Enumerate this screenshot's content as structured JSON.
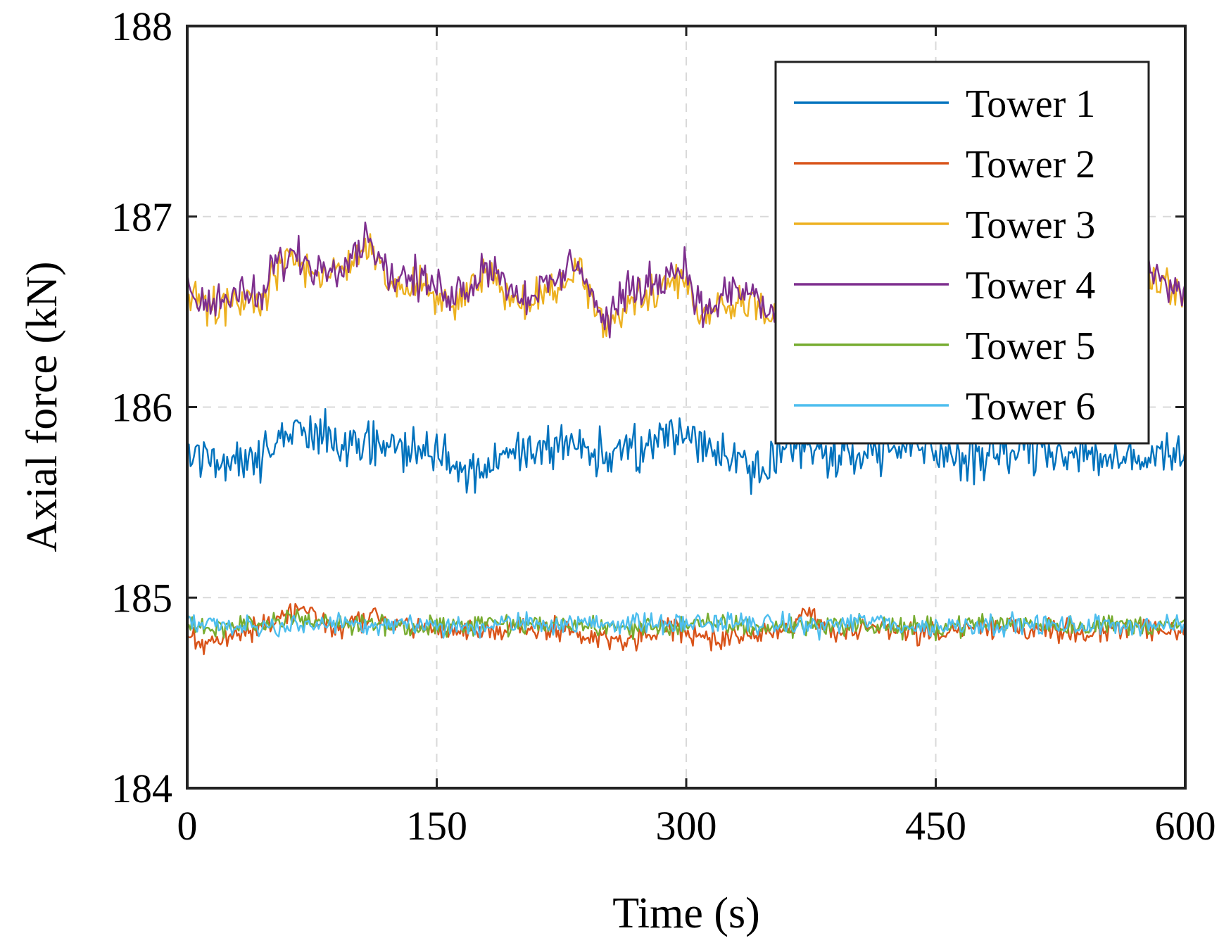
{
  "chart_data": {
    "type": "line",
    "title": "",
    "xlabel": "Time (s)",
    "ylabel": "Axial force (kN)",
    "xlim": [
      0,
      600
    ],
    "ylim": [
      184,
      188
    ],
    "xticks": [
      "0",
      "150",
      "300",
      "450",
      "600"
    ],
    "yticks": [
      "184",
      "185",
      "186",
      "187",
      "188"
    ],
    "grid": true,
    "legend_position": "top-right",
    "series": [
      {
        "name": "Tower 1",
        "color": "#0072BD",
        "x": [
          0,
          25,
          50,
          65,
          90,
          110,
          130,
          150,
          170,
          200,
          230,
          260,
          290,
          300,
          320,
          340,
          360,
          390,
          420,
          450,
          480,
          510,
          540,
          570,
          600
        ],
        "values": [
          185.75,
          185.72,
          185.78,
          185.88,
          185.82,
          185.8,
          185.78,
          185.76,
          185.65,
          185.75,
          185.82,
          185.73,
          185.85,
          185.88,
          185.75,
          185.7,
          185.78,
          185.76,
          185.78,
          185.76,
          185.74,
          185.78,
          185.76,
          185.7,
          185.8
        ]
      },
      {
        "name": "Tower 2",
        "color": "#D95319",
        "x": [
          0,
          10,
          25,
          50,
          65,
          90,
          110,
          130,
          150,
          170,
          200,
          230,
          260,
          290,
          300,
          320,
          340,
          360,
          370,
          390,
          420,
          450,
          480,
          510,
          540,
          570,
          600
        ],
        "values": [
          184.82,
          184.74,
          184.8,
          184.86,
          184.95,
          184.84,
          184.9,
          184.85,
          184.83,
          184.82,
          184.84,
          184.82,
          184.78,
          184.84,
          184.8,
          184.78,
          184.82,
          184.84,
          184.92,
          184.82,
          184.84,
          184.8,
          184.86,
          184.84,
          184.82,
          184.84,
          184.82
        ]
      },
      {
        "name": "Tower 3",
        "color": "#EDB120",
        "x": [
          0,
          10,
          30,
          48,
          50,
          65,
          80,
          95,
          110,
          120,
          140,
          160,
          170,
          180,
          200,
          220,
          235,
          250,
          265,
          290,
          300,
          310,
          325,
          340,
          350,
          380,
          420,
          460,
          500,
          540,
          575,
          590,
          600
        ],
        "values": [
          186.6,
          186.52,
          186.55,
          186.55,
          186.7,
          186.76,
          186.68,
          186.74,
          186.86,
          186.65,
          186.62,
          186.56,
          186.6,
          186.72,
          186.55,
          186.6,
          186.74,
          186.4,
          186.55,
          186.66,
          186.68,
          186.45,
          186.56,
          186.55,
          186.45,
          186.58,
          186.6,
          186.58,
          186.6,
          186.62,
          186.72,
          186.6,
          186.56
        ]
      },
      {
        "name": "Tower 4",
        "color": "#7E2F8E",
        "x": [
          0,
          10,
          30,
          48,
          50,
          65,
          80,
          95,
          110,
          120,
          140,
          160,
          170,
          180,
          200,
          220,
          235,
          250,
          265,
          290,
          300,
          310,
          325,
          340,
          350,
          380,
          420,
          460,
          500,
          540,
          575,
          590,
          600
        ],
        "values": [
          186.62,
          186.55,
          186.58,
          186.58,
          186.74,
          186.8,
          186.72,
          186.78,
          186.9,
          186.7,
          186.66,
          186.6,
          186.64,
          186.76,
          186.58,
          186.64,
          186.78,
          186.44,
          186.6,
          186.7,
          186.74,
          186.48,
          186.6,
          186.6,
          186.48,
          186.62,
          186.64,
          186.62,
          186.64,
          186.66,
          186.76,
          186.62,
          186.6
        ]
      },
      {
        "name": "Tower 5",
        "color": "#77AC30",
        "x": [
          0,
          25,
          50,
          65,
          90,
          110,
          130,
          150,
          170,
          200,
          230,
          260,
          290,
          320,
          350,
          380,
          410,
          440,
          470,
          500,
          530,
          560,
          600
        ],
        "values": [
          184.85,
          184.84,
          184.87,
          184.9,
          184.86,
          184.86,
          184.85,
          184.84,
          184.86,
          184.85,
          184.86,
          184.84,
          184.85,
          184.86,
          184.84,
          184.86,
          184.85,
          184.84,
          184.86,
          184.87,
          184.85,
          184.86,
          184.85
        ]
      },
      {
        "name": "Tower 6",
        "color": "#4DBEEE",
        "x": [
          0,
          25,
          50,
          65,
          90,
          110,
          130,
          150,
          170,
          200,
          230,
          260,
          290,
          320,
          350,
          380,
          410,
          440,
          470,
          500,
          530,
          560,
          600
        ],
        "values": [
          184.86,
          184.85,
          184.84,
          184.86,
          184.87,
          184.85,
          184.86,
          184.85,
          184.84,
          184.87,
          184.86,
          184.87,
          184.86,
          184.87,
          184.86,
          184.85,
          184.88,
          184.84,
          184.86,
          184.86,
          184.85,
          184.86,
          184.85
        ]
      }
    ]
  }
}
